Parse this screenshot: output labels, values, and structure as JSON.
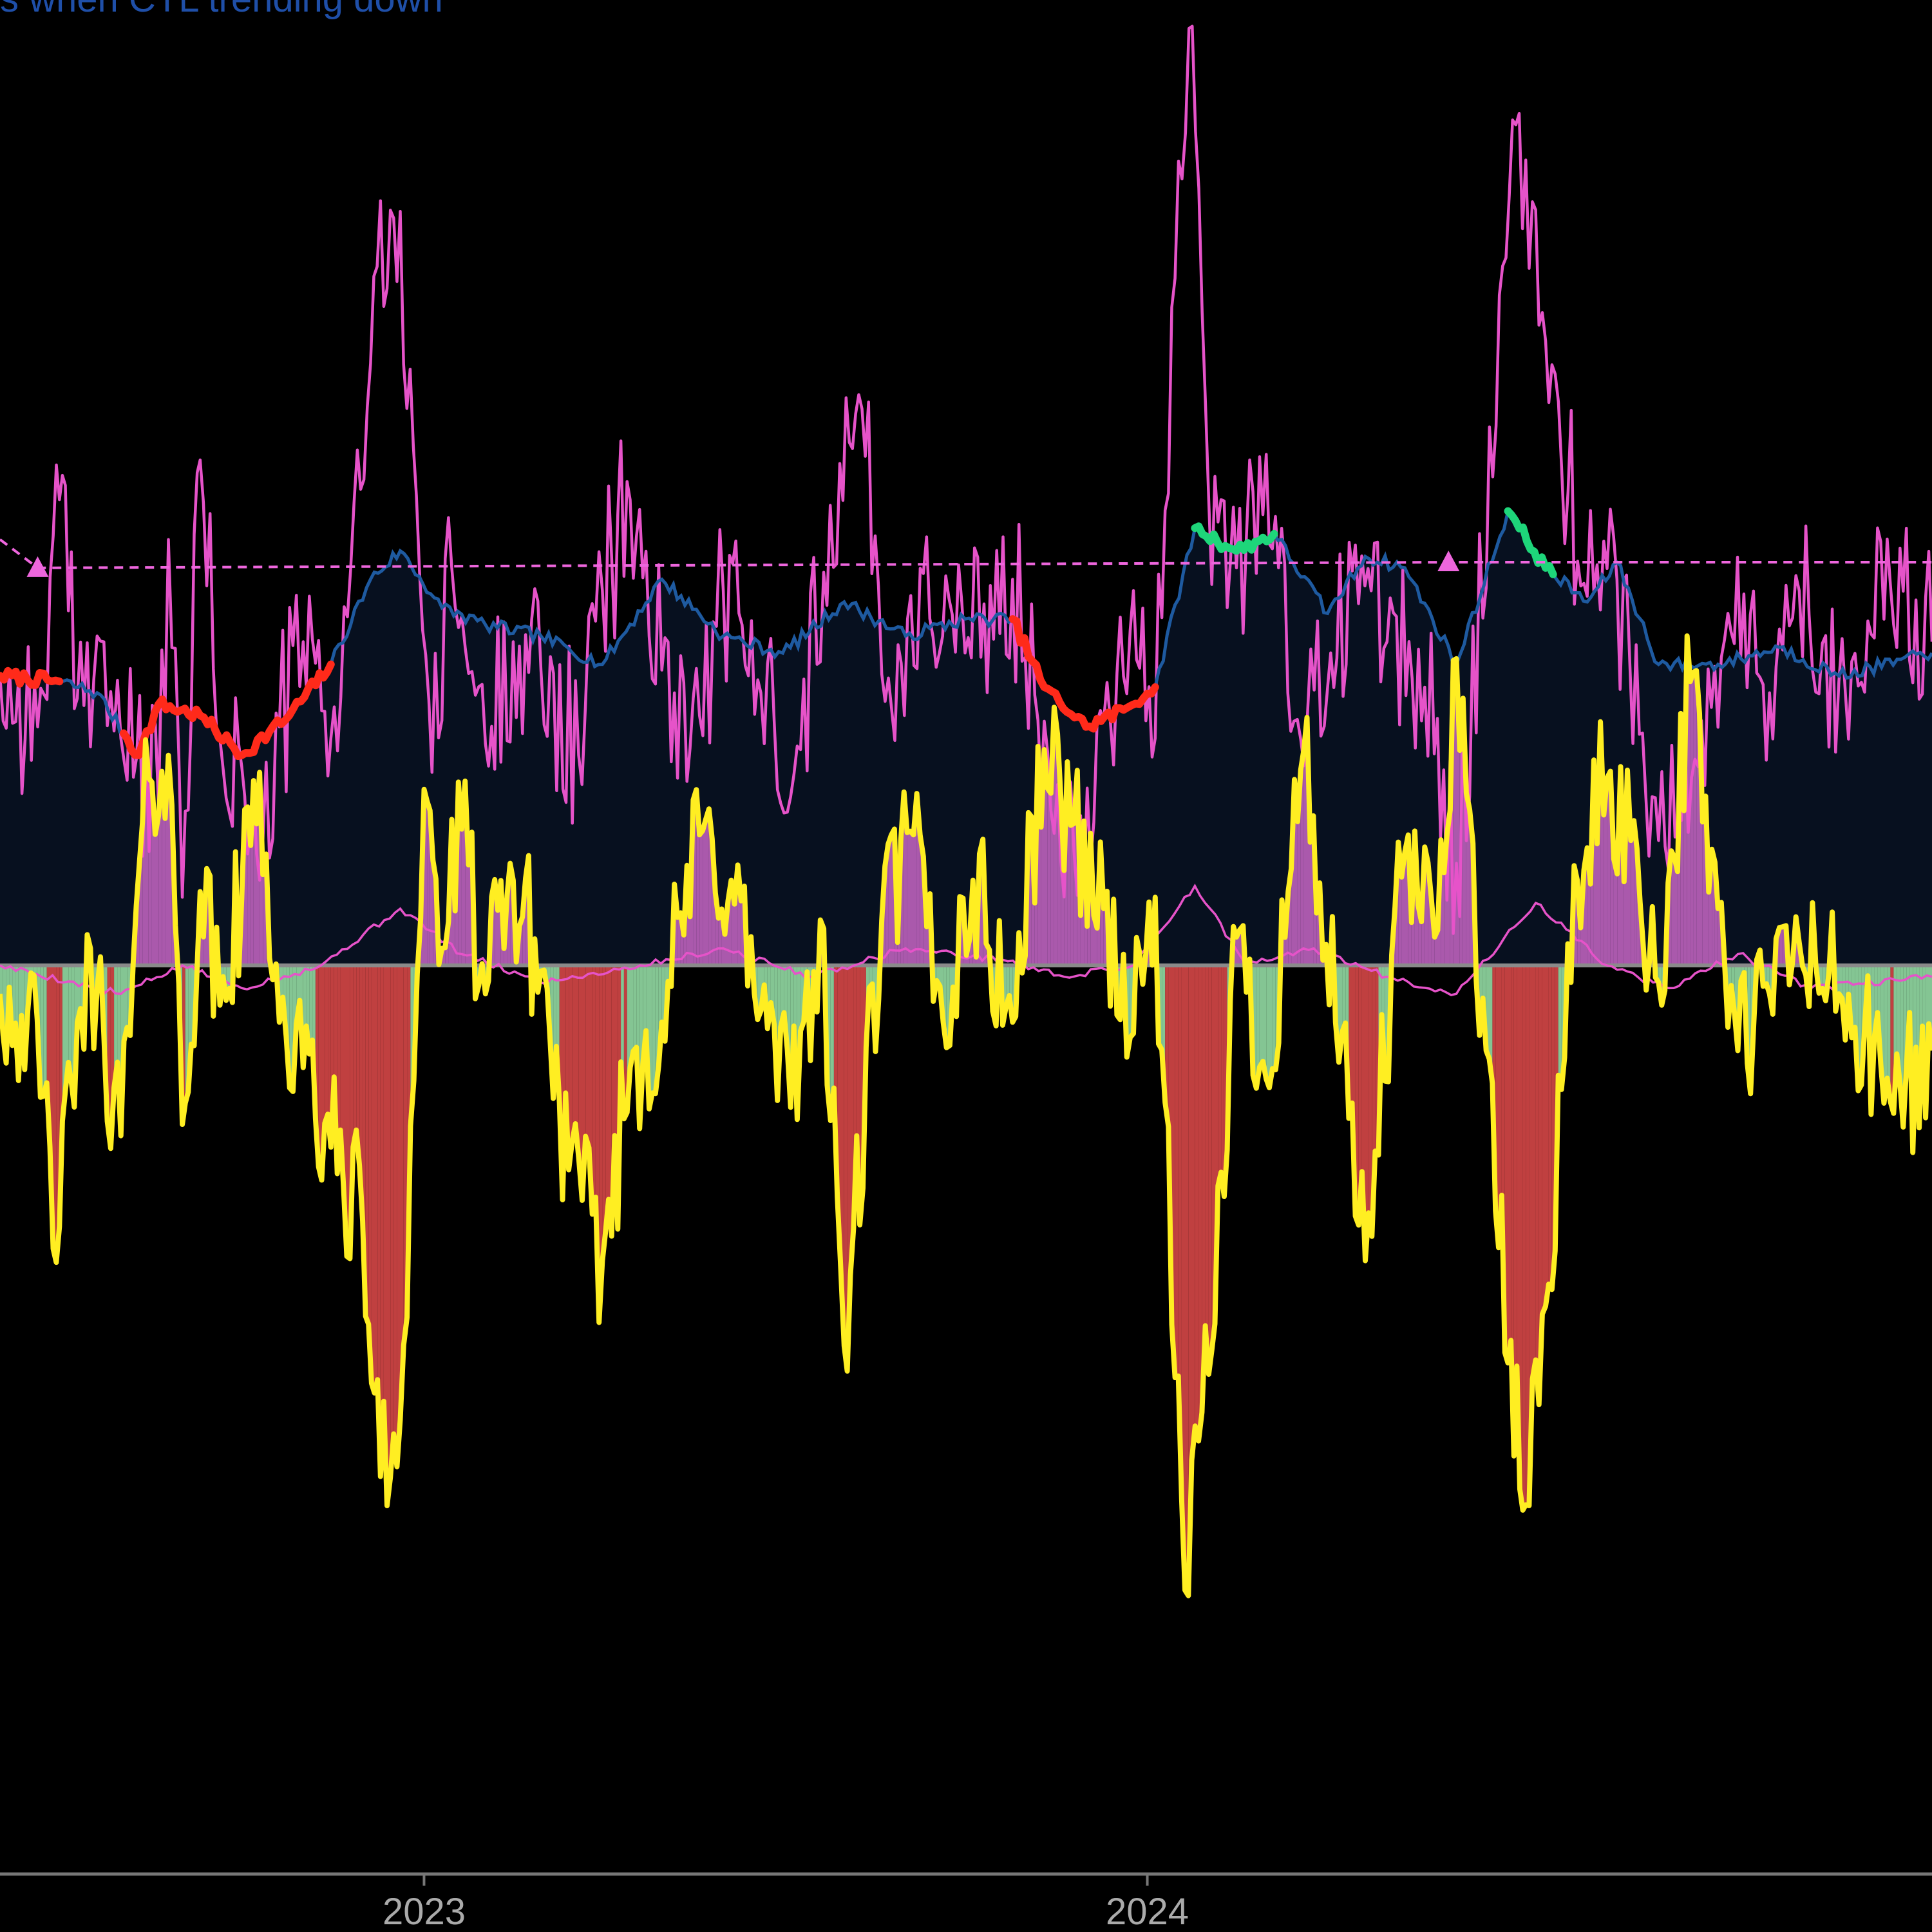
{
  "chart_data": {
    "type": "line",
    "legend": {
      "text": "s when CTL trending down",
      "placement": "top-left"
    },
    "x_axis": {
      "ticks": [
        "2023",
        "2024"
      ],
      "range": [
        "2022-06-01",
        "2025-01-31"
      ]
    },
    "y_axis": {
      "range": [
        -160,
        170
      ]
    },
    "grid": false,
    "colors": {
      "background": "#000000",
      "atl": "#e653c9",
      "ctl": "#1e5aa0",
      "ctl_fill": "#07101f",
      "ctl_trending_down": "#ff2a1a",
      "ctl_trending_up": "#1ed67a",
      "tsb": "#ffee22",
      "tsb_positive_fill": "#b85fb8",
      "tsb_negative_fill": "#d04545",
      "tsb_slight_negative_fill": "#8fd6a0",
      "peak_line": "#ee66dd",
      "axis": "#777777",
      "tick_text": "#aaaaaa",
      "legend_text": "#1f4fa8"
    },
    "series": [
      {
        "role": "ctl",
        "points": [
          [
            "2022-06-01",
            51
          ],
          [
            "2022-07-01",
            50
          ],
          [
            "2022-07-20",
            48
          ],
          [
            "2022-08-10",
            37
          ],
          [
            "2022-08-20",
            46
          ],
          [
            "2022-09-10",
            44
          ],
          [
            "2022-10-01",
            37
          ],
          [
            "2022-10-25",
            44
          ],
          [
            "2022-11-15",
            53
          ],
          [
            "2022-12-05",
            68
          ],
          [
            "2022-12-20",
            73
          ],
          [
            "2023-01-10",
            63
          ],
          [
            "2023-02-01",
            60
          ],
          [
            "2023-03-01",
            58
          ],
          [
            "2023-04-01",
            53
          ],
          [
            "2023-05-01",
            68
          ],
          [
            "2023-06-01",
            58
          ],
          [
            "2023-07-01",
            55
          ],
          [
            "2023-08-01",
            64
          ],
          [
            "2023-09-01",
            58
          ],
          [
            "2023-10-01",
            61
          ],
          [
            "2023-10-25",
            61
          ],
          [
            "2023-11-10",
            49
          ],
          [
            "2023-12-01",
            42
          ],
          [
            "2023-12-20",
            45
          ],
          [
            "2024-01-05",
            49
          ],
          [
            "2024-01-25",
            77
          ],
          [
            "2024-02-15",
            73
          ],
          [
            "2024-03-05",
            76
          ],
          [
            "2024-04-01",
            62
          ],
          [
            "2024-04-20",
            72
          ],
          [
            "2024-05-10",
            70
          ],
          [
            "2024-06-05",
            53
          ],
          [
            "2024-07-01",
            80
          ],
          [
            "2024-07-20",
            70
          ],
          [
            "2024-08-10",
            64
          ],
          [
            "2024-08-25",
            71
          ],
          [
            "2024-09-15",
            53
          ],
          [
            "2024-10-15",
            53
          ],
          [
            "2024-11-15",
            56
          ],
          [
            "2024-12-15",
            51
          ],
          [
            "2025-01-31",
            55
          ]
        ],
        "trending_down_ranges": [
          [
            "2022-06-01",
            "2022-07-01"
          ],
          [
            "2022-08-01",
            "2022-11-15"
          ],
          [
            "2023-10-25",
            "2024-01-05"
          ]
        ],
        "trending_up_ranges": [
          [
            "2024-01-25",
            "2024-03-05"
          ],
          [
            "2024-07-01",
            "2024-07-25"
          ]
        ]
      },
      {
        "role": "atl",
        "points": [
          [
            "2022-06-01",
            51
          ],
          [
            "2022-06-20",
            42
          ],
          [
            "2022-07-01",
            82
          ],
          [
            "2022-07-10",
            47
          ],
          [
            "2022-07-20",
            58
          ],
          [
            "2022-08-01",
            40
          ],
          [
            "2022-08-20",
            28
          ],
          [
            "2022-08-25",
            75
          ],
          [
            "2022-09-01",
            12
          ],
          [
            "2022-09-10",
            89
          ],
          [
            "2022-09-20",
            40
          ],
          [
            "2022-10-01",
            35
          ],
          [
            "2022-10-10",
            15
          ],
          [
            "2022-10-20",
            42
          ],
          [
            "2022-11-01",
            57
          ],
          [
            "2022-11-15",
            40
          ],
          [
            "2022-11-25",
            70
          ],
          [
            "2022-12-05",
            106
          ],
          [
            "2022-12-15",
            133
          ],
          [
            "2022-12-25",
            105
          ],
          [
            "2023-01-05",
            34
          ],
          [
            "2023-01-15",
            70
          ],
          [
            "2023-02-01",
            39
          ],
          [
            "2023-02-15",
            57
          ],
          [
            "2023-03-01",
            52
          ],
          [
            "2023-03-20",
            37
          ],
          [
            "2023-04-01",
            66
          ],
          [
            "2023-04-15",
            82
          ],
          [
            "2023-05-01",
            52
          ],
          [
            "2023-05-20",
            44
          ],
          [
            "2023-06-01",
            66
          ],
          [
            "2023-06-20",
            48
          ],
          [
            "2023-07-10",
            38
          ],
          [
            "2023-07-25",
            81
          ],
          [
            "2023-08-10",
            98
          ],
          [
            "2023-08-25",
            45
          ],
          [
            "2023-09-10",
            69
          ],
          [
            "2023-10-01",
            55
          ],
          [
            "2023-10-25",
            68
          ],
          [
            "2023-11-10",
            43
          ],
          [
            "2023-11-25",
            20
          ],
          [
            "2023-12-10",
            43
          ],
          [
            "2023-12-25",
            66
          ],
          [
            "2024-01-05",
            40
          ],
          [
            "2024-01-15",
            121
          ],
          [
            "2024-01-22",
            165
          ],
          [
            "2024-02-01",
            82
          ],
          [
            "2024-02-15",
            70
          ],
          [
            "2024-03-01",
            90
          ],
          [
            "2024-03-15",
            43
          ],
          [
            "2024-04-01",
            49
          ],
          [
            "2024-04-15",
            74
          ],
          [
            "2024-05-01",
            57
          ],
          [
            "2024-05-20",
            49
          ],
          [
            "2024-06-05",
            18
          ],
          [
            "2024-06-25",
            95
          ],
          [
            "2024-07-05",
            148
          ],
          [
            "2024-07-20",
            110
          ],
          [
            "2024-08-10",
            65
          ],
          [
            "2024-08-25",
            68
          ],
          [
            "2024-09-15",
            22
          ],
          [
            "2024-10-05",
            35
          ],
          [
            "2024-10-20",
            62
          ],
          [
            "2024-11-10",
            48
          ],
          [
            "2024-11-25",
            66
          ],
          [
            "2024-12-15",
            50
          ],
          [
            "2025-01-10",
            67
          ],
          [
            "2025-01-31",
            57
          ]
        ]
      },
      {
        "role": "tsb",
        "points": [
          [
            "2022-06-01",
            -5
          ],
          [
            "2022-06-15",
            -8
          ],
          [
            "2022-07-01",
            -46
          ],
          [
            "2022-07-10",
            -10
          ],
          [
            "2022-07-20",
            -4
          ],
          [
            "2022-08-01",
            -30
          ],
          [
            "2022-08-15",
            33
          ],
          [
            "2022-08-25",
            37
          ],
          [
            "2022-09-01",
            -28
          ],
          [
            "2022-09-10",
            13
          ],
          [
            "2022-09-20",
            -7
          ],
          [
            "2022-10-01",
            12
          ],
          [
            "2022-10-10",
            34
          ],
          [
            "2022-10-20",
            -10
          ],
          [
            "2022-11-01",
            -18
          ],
          [
            "2022-11-15",
            -32
          ],
          [
            "2022-12-01",
            -45
          ],
          [
            "2022-12-10",
            -90
          ],
          [
            "2022-12-20",
            -80
          ],
          [
            "2023-01-01",
            31
          ],
          [
            "2023-01-10",
            3
          ],
          [
            "2023-01-20",
            24
          ],
          [
            "2023-02-01",
            -5
          ],
          [
            "2023-02-15",
            15
          ],
          [
            "2023-03-01",
            -1
          ],
          [
            "2023-03-15",
            -36
          ],
          [
            "2023-04-01",
            -52
          ],
          [
            "2023-04-15",
            -18
          ],
          [
            "2023-05-01",
            -10
          ],
          [
            "2023-05-20",
            23
          ],
          [
            "2023-06-05",
            15
          ],
          [
            "2023-06-20",
            -8
          ],
          [
            "2023-07-05",
            -25
          ],
          [
            "2023-07-20",
            8
          ],
          [
            "2023-08-01",
            -67
          ],
          [
            "2023-08-20",
            8
          ],
          [
            "2023-09-05",
            23
          ],
          [
            "2023-09-20",
            -10
          ],
          [
            "2023-10-05",
            15
          ],
          [
            "2023-10-25",
            -10
          ],
          [
            "2023-11-10",
            38
          ],
          [
            "2023-11-25",
            25
          ],
          [
            "2023-12-10",
            10
          ],
          [
            "2023-12-25",
            -12
          ],
          [
            "2024-01-05",
            12
          ],
          [
            "2024-01-20",
            -110
          ],
          [
            "2024-02-01",
            -72
          ],
          [
            "2024-02-15",
            5
          ],
          [
            "2024-03-01",
            -20
          ],
          [
            "2024-03-20",
            38
          ],
          [
            "2024-04-05",
            -10
          ],
          [
            "2024-04-20",
            -52
          ],
          [
            "2024-05-10",
            20
          ],
          [
            "2024-05-25",
            5
          ],
          [
            "2024-06-05",
            54
          ],
          [
            "2024-06-20",
            -15
          ],
          [
            "2024-07-01",
            -70
          ],
          [
            "2024-07-10",
            -95
          ],
          [
            "2024-07-20",
            -60
          ],
          [
            "2024-08-05",
            15
          ],
          [
            "2024-08-20",
            33
          ],
          [
            "2024-09-01",
            22
          ],
          [
            "2024-09-15",
            -3
          ],
          [
            "2024-10-01",
            50
          ],
          [
            "2024-10-15",
            10
          ],
          [
            "2024-10-25",
            -15
          ],
          [
            "2024-11-10",
            -5
          ],
          [
            "2024-11-25",
            4
          ],
          [
            "2024-12-15",
            -5
          ],
          [
            "2025-01-10",
            -24
          ],
          [
            "2025-01-31",
            -15
          ]
        ]
      },
      {
        "role": "tsb_trend",
        "points": [
          [
            "2022-06-01",
            0
          ],
          [
            "2022-08-01",
            -5
          ],
          [
            "2022-09-01",
            0
          ],
          [
            "2022-10-01",
            -4
          ],
          [
            "2022-11-10",
            0
          ],
          [
            "2022-12-20",
            10
          ],
          [
            "2023-01-20",
            2
          ],
          [
            "2023-03-01",
            -3
          ],
          [
            "2023-04-20",
            0
          ],
          [
            "2023-06-01",
            3
          ],
          [
            "2023-07-15",
            -2
          ],
          [
            "2023-09-01",
            3
          ],
          [
            "2023-10-20",
            1
          ],
          [
            "2023-11-20",
            -2
          ],
          [
            "2023-12-25",
            0
          ],
          [
            "2024-01-25",
            14
          ],
          [
            "2024-02-20",
            0
          ],
          [
            "2024-03-25",
            3
          ],
          [
            "2024-05-01",
            -2
          ],
          [
            "2024-06-05",
            -5
          ],
          [
            "2024-07-15",
            11
          ],
          [
            "2024-08-20",
            0
          ],
          [
            "2024-09-20",
            -4
          ],
          [
            "2024-10-25",
            2
          ],
          [
            "2024-12-01",
            -4
          ],
          [
            "2025-01-31",
            -2
          ]
        ]
      },
      {
        "role": "peak_line",
        "points": [
          [
            "2022-06-01",
            75
          ],
          [
            "2022-06-20",
            70
          ],
          [
            "2024-06-01",
            71
          ],
          [
            "2025-01-31",
            71
          ]
        ],
        "markers": [
          [
            "2022-06-20",
            70
          ],
          [
            "2024-06-01",
            71
          ]
        ]
      }
    ]
  }
}
